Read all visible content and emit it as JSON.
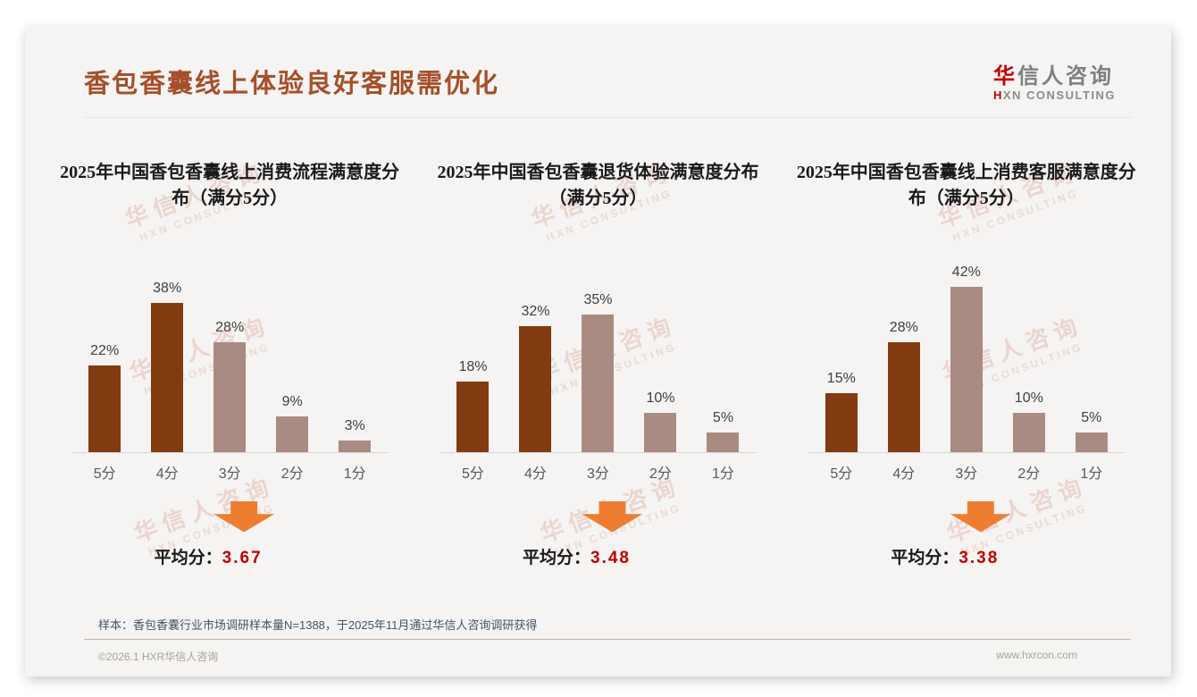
{
  "header": {
    "title": "香包香囊线上体验良好客服需优化"
  },
  "logo": {
    "cn_accent": "华",
    "cn_rest": "信人咨询",
    "en_accent": "H",
    "en_rest": "XN CONSULTING"
  },
  "watermark": {
    "line1": "华信人咨询",
    "line2": "HXN CONSULTING"
  },
  "chart_data": [
    {
      "type": "bar",
      "title": "2025年中国香包香囊线上消费流程满意度分布（满分5分）",
      "categories": [
        "5分",
        "4分",
        "3分",
        "2分",
        "1分"
      ],
      "values": [
        22,
        38,
        28,
        9,
        3
      ],
      "value_suffix": "%",
      "ylim": [
        0,
        45
      ],
      "grid": false,
      "bar_colors": [
        "#823A10",
        "#823A10",
        "#AA8B82",
        "#AA8B82",
        "#AA8B82"
      ],
      "average_label": "平均分：",
      "average": "3.67"
    },
    {
      "type": "bar",
      "title": "2025年中国香包香囊退货体验满意度分布（满分5分）",
      "categories": [
        "5分",
        "4分",
        "3分",
        "2分",
        "1分"
      ],
      "values": [
        18,
        32,
        35,
        10,
        5
      ],
      "value_suffix": "%",
      "ylim": [
        0,
        45
      ],
      "grid": false,
      "bar_colors": [
        "#823A10",
        "#823A10",
        "#AA8B82",
        "#AA8B82",
        "#AA8B82"
      ],
      "average_label": "平均分：",
      "average": "3.48"
    },
    {
      "type": "bar",
      "title": "2025年中国香包香囊线上消费客服满意度分布（满分5分）",
      "categories": [
        "5分",
        "4分",
        "3分",
        "2分",
        "1分"
      ],
      "values": [
        15,
        28,
        42,
        10,
        5
      ],
      "value_suffix": "%",
      "ylim": [
        0,
        45
      ],
      "grid": false,
      "bar_colors": [
        "#823A10",
        "#823A10",
        "#AA8B82",
        "#AA8B82",
        "#AA8B82"
      ],
      "average_label": "平均分：",
      "average": "3.38"
    }
  ],
  "footnote": {
    "text": "样本：香包香囊行业市场调研样本量N=1388，于2025年11月通过华信人咨询调研获得"
  },
  "footer": {
    "left": "©2026.1 HXR华信人咨询",
    "right": "www.hxrcon.com"
  },
  "colors": {
    "accent_brown": "#A5502B",
    "bar_dark": "#823A10",
    "bar_light": "#AA8B82",
    "arrow_orange": "#EE7D2F",
    "average_red": "#C00000",
    "logo_red": "#C00000",
    "footnote_blue": "#44546A"
  }
}
